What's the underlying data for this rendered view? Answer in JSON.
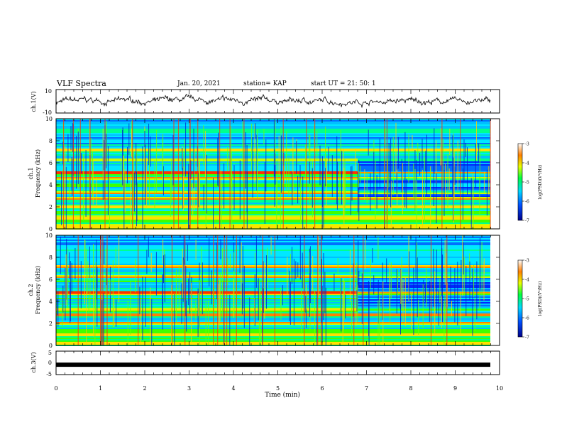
{
  "header": {
    "title": "VLF Spectra",
    "date": "Jan. 20, 2021",
    "station": "station= KAP",
    "start_ut": "start  UT =   21: 50: 1"
  },
  "chart_data": [
    {
      "type": "line",
      "panel": "waveform-ch1",
      "ylabel": "ch.1(V)",
      "ylim": [
        -10,
        10
      ],
      "yticks": [
        "10",
        "-10"
      ],
      "xlim": [
        0,
        10
      ],
      "note_series": "noisy waveform centered near 0 V, amplitude about ±5 V, visible until ~9.8 min"
    },
    {
      "type": "heatmap",
      "panel": "spectrogram-ch1",
      "ylabel": "ch.1\nFrequency (kHz)",
      "ylim": [
        0,
        10
      ],
      "yticks": [
        "0",
        "2",
        "4",
        "6",
        "8",
        "10"
      ],
      "xlim": [
        0,
        9.8
      ],
      "colorbar": {
        "label": "log(PSD)(V²/Hz)",
        "range": [
          -7,
          -3
        ],
        "ticks": [
          "-3",
          "-4",
          "-5",
          "-6",
          "-7"
        ]
      },
      "bands_khz": [
        0.3,
        1.0,
        2.1,
        2.8,
        3.4,
        4.6,
        5.1,
        6.3,
        7.2
      ],
      "strong_band_khz": 5.1,
      "transition_min": 6.8
    },
    {
      "type": "heatmap",
      "panel": "spectrogram-ch2",
      "ylabel": "ch.2\nFrequency (kHz)",
      "ylim": [
        0,
        10
      ],
      "yticks": [
        "0",
        "2",
        "4",
        "6",
        "8",
        "10"
      ],
      "xlim": [
        0,
        9.8
      ],
      "colorbar": {
        "label": "log(PSD)(V²/Hz)",
        "range": [
          -7,
          -3
        ],
        "ticks": [
          "-3",
          "-4",
          "-5",
          "-6",
          "-7"
        ]
      },
      "bands_khz": [
        0.3,
        1.0,
        2.1,
        2.8,
        3.4,
        4.8,
        6.3,
        7.2
      ],
      "strong_band_khz": 4.8,
      "transition_min": 6.8
    },
    {
      "type": "line",
      "panel": "waveform-ch3",
      "ylabel": "ch.3(V)",
      "ylim": [
        -5,
        5
      ],
      "yticks": [
        "5",
        "0",
        "-5"
      ],
      "xlim": [
        0,
        10
      ],
      "constant_value": -0.8
    }
  ],
  "xaxis": {
    "label": "Time (min)",
    "ticks": [
      "0",
      "1",
      "2",
      "3",
      "4",
      "5",
      "6",
      "7",
      "8",
      "9",
      "10"
    ]
  },
  "colors": {
    "low": "#00008b",
    "mid": "#00c8ff",
    "high": "#00ff00",
    "max": "#ff0000"
  }
}
